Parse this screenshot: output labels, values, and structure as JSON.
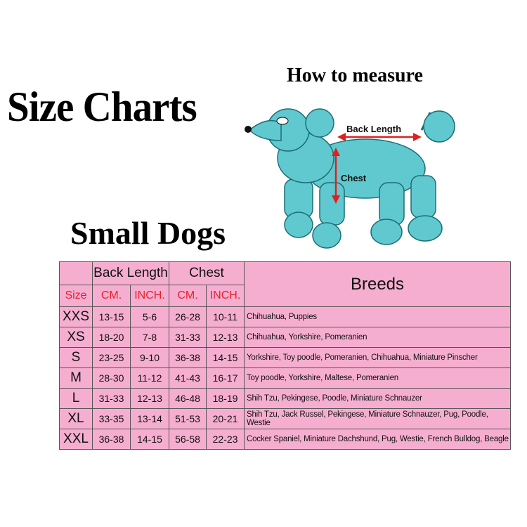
{
  "title": "Size Charts",
  "subtitle": "Small Dogs",
  "measure": {
    "heading": "How to measure",
    "back_length": "Back Length",
    "chest": "Chest"
  },
  "colors": {
    "table_bg": "#f6aed0",
    "header_red": "#e8202a",
    "dog": "#5fc9cf",
    "arrow": "#e02020"
  },
  "table": {
    "group_headers": {
      "back_length": "Back Length",
      "chest": "Chest",
      "breeds": "Breeds"
    },
    "sub_headers": {
      "size": "Size",
      "bl_cm": "CM.",
      "bl_inch": "INCH.",
      "ch_cm": "CM.",
      "ch_inch": "INCH."
    },
    "rows": [
      {
        "size": "XXS",
        "bl_cm": "13-15",
        "bl_inch": "5-6",
        "ch_cm": "26-28",
        "ch_inch": "10-11",
        "breeds": "Chihuahua, Puppies"
      },
      {
        "size": "XS",
        "bl_cm": "18-20",
        "bl_inch": "7-8",
        "ch_cm": "31-33",
        "ch_inch": "12-13",
        "breeds": "Chihuahua, Yorkshire, Pomeranien"
      },
      {
        "size": "S",
        "bl_cm": "23-25",
        "bl_inch": "9-10",
        "ch_cm": "36-38",
        "ch_inch": "14-15",
        "breeds": "Yorkshire, Toy poodle, Pomeranien, Chihuahua, Miniature Pinscher"
      },
      {
        "size": "M",
        "bl_cm": "28-30",
        "bl_inch": "11-12",
        "ch_cm": "41-43",
        "ch_inch": "16-17",
        "breeds": "Toy poodle, Yorkshire, Maltese, Pomeranien"
      },
      {
        "size": "L",
        "bl_cm": "31-33",
        "bl_inch": "12-13",
        "ch_cm": "46-48",
        "ch_inch": "18-19",
        "breeds": "Shih Tzu, Pekingese, Poodle, Miniature Schnauzer"
      },
      {
        "size": "XL",
        "bl_cm": "33-35",
        "bl_inch": "13-14",
        "ch_cm": "51-53",
        "ch_inch": "20-21",
        "breeds": "Shih Tzu, Jack Russel, Pekingese, Miniature Schnauzer, Pug, Poodle, Westie"
      },
      {
        "size": "XXL",
        "bl_cm": "36-38",
        "bl_inch": "14-15",
        "ch_cm": "56-58",
        "ch_inch": "22-23",
        "breeds": "Cocker Spaniel, Miniature Dachshund, Pug, Westie, French Bulldog, Beagle"
      }
    ]
  }
}
